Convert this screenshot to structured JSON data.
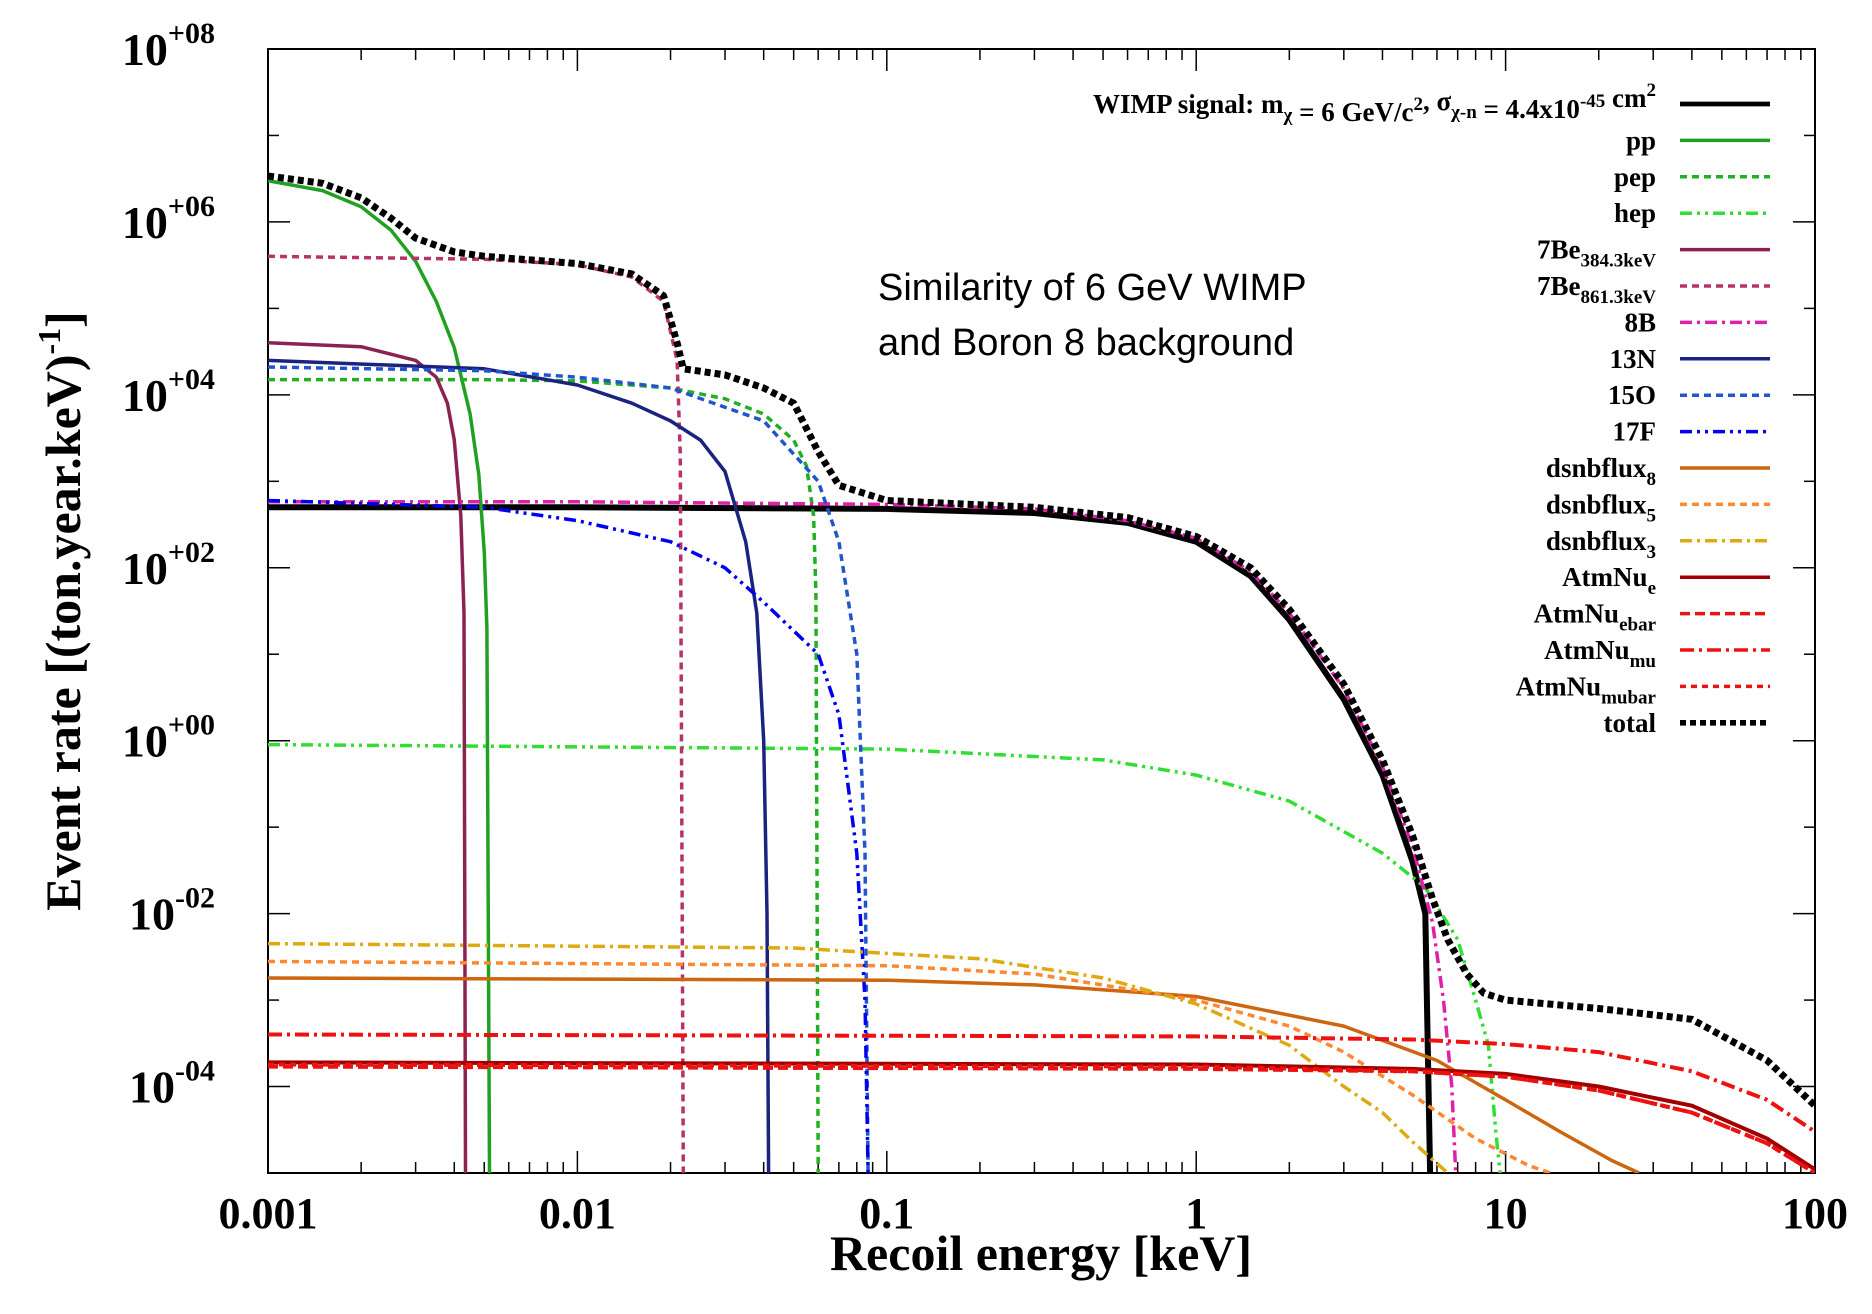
{
  "chart_data": {
    "type": "line",
    "xlabel": "Recoil energy [keV]",
    "ylabel_main": "Event rate [(ton.year.keV)",
    "ylabel_sup": "-1",
    "ylabel_close": "]",
    "x_scale": "log",
    "y_scale": "log",
    "xlim": [
      0.001,
      100
    ],
    "ylim": [
      1e-05,
      100000000.0
    ],
    "x_ticks": [
      {
        "value": 0.001,
        "label": "0.001"
      },
      {
        "value": 0.01,
        "label": "0.01"
      },
      {
        "value": 0.1,
        "label": "0.1"
      },
      {
        "value": 1,
        "label": "1"
      },
      {
        "value": 10,
        "label": "10"
      },
      {
        "value": 100,
        "label": "100"
      }
    ],
    "y_ticks": [
      {
        "value": 100000000.0,
        "base": "10",
        "exp": "+08"
      },
      {
        "value": 1000000.0,
        "base": "10",
        "exp": "+06"
      },
      {
        "value": 10000.0,
        "base": "10",
        "exp": "+04"
      },
      {
        "value": 100.0,
        "base": "10",
        "exp": "+02"
      },
      {
        "value": 1,
        "base": "10",
        "exp": "+00"
      },
      {
        "value": 0.01,
        "base": "10",
        "exp": "-02"
      },
      {
        "value": 0.0001,
        "base": "10",
        "exp": "-04"
      }
    ],
    "grid": false,
    "legend_position": "top-right",
    "annotation": [
      "Similarity of 6 GeV WIMP",
      "and Boron 8 background"
    ],
    "series": [
      {
        "name": "WIMP signal",
        "legend_text": "WIMP signal: m",
        "legend_sub1": "χ",
        "legend_text2": " = 6 GeV/c",
        "legend_sup1": "2",
        "legend_text3": ", σ",
        "legend_sub2": "χ-n",
        "legend_text4": " = 4.4x10",
        "legend_sup2": "-45",
        "legend_text5": " cm",
        "legend_sup3": "2",
        "color": "#000000",
        "dash": "solid",
        "width": 6,
        "points": [
          [
            0.001,
            500
          ],
          [
            0.01,
            500
          ],
          [
            0.1,
            480
          ],
          [
            0.3,
            430
          ],
          [
            0.6,
            330
          ],
          [
            1,
            200
          ],
          [
            1.5,
            80
          ],
          [
            2,
            25
          ],
          [
            3,
            3
          ],
          [
            4,
            0.4
          ],
          [
            5,
            0.04
          ],
          [
            5.5,
            0.01
          ],
          [
            5.7,
            1e-05
          ]
        ]
      },
      {
        "name": "pp",
        "color": "#22a022",
        "dash": "solid",
        "width": 3.5,
        "points": [
          [
            0.001,
            3000000.0
          ],
          [
            0.0015,
            2300000.0
          ],
          [
            0.002,
            1500000.0
          ],
          [
            0.0025,
            800000.0
          ],
          [
            0.003,
            350000.0
          ],
          [
            0.0035,
            120000.0
          ],
          [
            0.004,
            35000.0
          ],
          [
            0.0045,
            6000
          ],
          [
            0.0048,
            1200
          ],
          [
            0.005,
            150
          ],
          [
            0.0051,
            20
          ],
          [
            0.0052,
            1e-05
          ]
        ]
      },
      {
        "name": "pep",
        "color": "#22b022",
        "dash": "7,5",
        "width": 3.5,
        "points": [
          [
            0.001,
            15000
          ],
          [
            0.005,
            15000
          ],
          [
            0.01,
            14500
          ],
          [
            0.02,
            12000
          ],
          [
            0.03,
            9000
          ],
          [
            0.04,
            6000
          ],
          [
            0.05,
            3000
          ],
          [
            0.055,
            1500
          ],
          [
            0.058,
            400
          ],
          [
            0.059,
            50
          ],
          [
            0.06,
            1e-05
          ]
        ]
      },
      {
        "name": "hep",
        "color": "#33dd33",
        "dash": "12,5,3,5,3,5",
        "width": 3.5,
        "points": [
          [
            0.001,
            0.9
          ],
          [
            0.1,
            0.8
          ],
          [
            0.5,
            0.6
          ],
          [
            1,
            0.4
          ],
          [
            2,
            0.2
          ],
          [
            4,
            0.05
          ],
          [
            5.5,
            0.02
          ],
          [
            7,
            0.005
          ],
          [
            8,
            0.001
          ],
          [
            8.8,
            0.0003
          ],
          [
            9.3,
            3e-05
          ],
          [
            9.6,
            1e-05
          ]
        ]
      },
      {
        "name": "7Be 384.3keV",
        "legend_text": "7Be",
        "legend_sub1": "384.3keV",
        "color": "#8b2252",
        "dash": "solid",
        "width": 3.5,
        "points": [
          [
            0.001,
            40000
          ],
          [
            0.002,
            36000
          ],
          [
            0.003,
            25000
          ],
          [
            0.0035,
            16000
          ],
          [
            0.0038,
            8000
          ],
          [
            0.004,
            3000
          ],
          [
            0.0042,
            400
          ],
          [
            0.0043,
            30
          ],
          [
            0.00435,
            1e-05
          ]
        ]
      },
      {
        "name": "7Be 861.3keV",
        "legend_text": "7Be",
        "legend_sub1": "861.3keV",
        "color": "#b8336a",
        "dash": "7,5",
        "width": 3.5,
        "points": [
          [
            0.001,
            400000
          ],
          [
            0.005,
            370000
          ],
          [
            0.01,
            320000
          ],
          [
            0.015,
            230000
          ],
          [
            0.019,
            120000
          ],
          [
            0.021,
            25000
          ],
          [
            0.0215,
            2000
          ],
          [
            0.022,
            1e-05
          ]
        ]
      },
      {
        "name": "8B",
        "color": "#dd22aa",
        "dash": "12,5,3,5",
        "width": 3.5,
        "points": [
          [
            0.001,
            580
          ],
          [
            0.01,
            580
          ],
          [
            0.1,
            540
          ],
          [
            0.3,
            480
          ],
          [
            0.6,
            350
          ],
          [
            1,
            220
          ],
          [
            1.5,
            90
          ],
          [
            2,
            30
          ],
          [
            3,
            4
          ],
          [
            4,
            0.5
          ],
          [
            5,
            0.06
          ],
          [
            5.8,
            0.008
          ],
          [
            6.3,
            0.001
          ],
          [
            6.7,
            0.0001
          ],
          [
            6.9,
            1e-05
          ]
        ]
      },
      {
        "name": "13N",
        "color": "#1a237e",
        "dash": "solid",
        "width": 3.5,
        "points": [
          [
            0.001,
            25000
          ],
          [
            0.005,
            20000
          ],
          [
            0.01,
            13000
          ],
          [
            0.015,
            8000
          ],
          [
            0.02,
            5000
          ],
          [
            0.025,
            3000
          ],
          [
            0.03,
            1300
          ],
          [
            0.035,
            200
          ],
          [
            0.038,
            30
          ],
          [
            0.04,
            1
          ],
          [
            0.041,
            0.01
          ],
          [
            0.0415,
            1e-05
          ]
        ]
      },
      {
        "name": "15O",
        "color": "#2255cc",
        "dash": "7,5",
        "width": 3.5,
        "points": [
          [
            0.001,
            21000
          ],
          [
            0.005,
            19000
          ],
          [
            0.01,
            16000
          ],
          [
            0.02,
            12000
          ],
          [
            0.04,
            5000
          ],
          [
            0.06,
            1000
          ],
          [
            0.07,
            200
          ],
          [
            0.08,
            10
          ],
          [
            0.085,
            0.05
          ],
          [
            0.087,
            1e-05
          ]
        ]
      },
      {
        "name": "17F",
        "color": "#0000ee",
        "dash": "12,5,3,5,3,5",
        "width": 3.5,
        "points": [
          [
            0.001,
            600
          ],
          [
            0.005,
            500
          ],
          [
            0.01,
            350
          ],
          [
            0.02,
            200
          ],
          [
            0.03,
            100
          ],
          [
            0.04,
            40
          ],
          [
            0.06,
            10
          ],
          [
            0.07,
            2
          ],
          [
            0.08,
            0.05
          ],
          [
            0.085,
            0.001
          ],
          [
            0.087,
            1e-05
          ]
        ]
      },
      {
        "name": "dsnbflux 8",
        "legend_text": "dsnbflux",
        "legend_sub1": "8",
        "color": "#cc6611",
        "dash": "solid",
        "width": 3.5,
        "points": [
          [
            0.001,
            0.0018
          ],
          [
            0.1,
            0.0017
          ],
          [
            0.3,
            0.0015
          ],
          [
            1,
            0.0011
          ],
          [
            3,
            0.0005
          ],
          [
            6,
            0.0002
          ],
          [
            10,
            7e-05
          ],
          [
            15,
            3e-05
          ],
          [
            22,
            1.4e-05
          ],
          [
            27,
            1e-05
          ]
        ]
      },
      {
        "name": "dsnbflux 5",
        "legend_text": "dsnbflux",
        "legend_sub1": "5",
        "color": "#ff8833",
        "dash": "7,5",
        "width": 3.5,
        "points": [
          [
            0.001,
            0.0028
          ],
          [
            0.1,
            0.0025
          ],
          [
            0.3,
            0.002
          ],
          [
            1,
            0.001
          ],
          [
            2,
            0.0005
          ],
          [
            3,
            0.00025
          ],
          [
            5,
            8e-05
          ],
          [
            8,
            2.5e-05
          ],
          [
            12,
            1.2e-05
          ],
          [
            14,
            1e-05
          ]
        ]
      },
      {
        "name": "dsnbflux 3",
        "legend_text": "dsnbflux",
        "legend_sub1": "3",
        "color": "#ddaa11",
        "dash": "12,5,3,5",
        "width": 3.5,
        "points": [
          [
            0.001,
            0.0045
          ],
          [
            0.05,
            0.004
          ],
          [
            0.2,
            0.003
          ],
          [
            0.5,
            0.0018
          ],
          [
            1,
            0.0009
          ],
          [
            2,
            0.0003
          ],
          [
            3,
            0.0001
          ],
          [
            4,
            5e-05
          ],
          [
            5,
            2.3e-05
          ],
          [
            6.5,
            1e-05
          ]
        ]
      },
      {
        "name": "AtmNu e",
        "legend_text": "AtmNu",
        "legend_sub1": "e",
        "color": "#a00000",
        "dash": "solid",
        "width": 4,
        "points": [
          [
            0.001,
            0.00019
          ],
          [
            1,
            0.00018
          ],
          [
            5,
            0.00016
          ],
          [
            10,
            0.00014
          ],
          [
            20,
            0.0001
          ],
          [
            40,
            6e-05
          ],
          [
            70,
            2.5e-05
          ],
          [
            100,
            1.1e-05
          ]
        ]
      },
      {
        "name": "AtmNu ebar",
        "legend_text": "AtmNu",
        "legend_sub1": "ebar",
        "color": "#ee1111",
        "dash": "10,5",
        "width": 4,
        "points": [
          [
            0.001,
            0.00017
          ],
          [
            1,
            0.00016
          ],
          [
            5,
            0.00015
          ],
          [
            10,
            0.00013
          ],
          [
            20,
            9e-05
          ],
          [
            40,
            5e-05
          ],
          [
            70,
            2.2e-05
          ],
          [
            100,
            1e-05
          ]
        ]
      },
      {
        "name": "AtmNu mu",
        "legend_text": "AtmNu",
        "legend_sub1": "mu",
        "color": "#ee1111",
        "dash": "14,5,3,5",
        "width": 4,
        "points": [
          [
            0.001,
            0.0004
          ],
          [
            1,
            0.00038
          ],
          [
            5,
            0.00035
          ],
          [
            10,
            0.00031
          ],
          [
            20,
            0.00025
          ],
          [
            40,
            0.00015
          ],
          [
            70,
            7e-05
          ],
          [
            100,
            3e-05
          ]
        ]
      },
      {
        "name": "AtmNu mubar",
        "legend_text": "AtmNu",
        "legend_sub1": "mubar",
        "color": "#ee1111",
        "dash": "6,5",
        "width": 4,
        "points": [
          [
            0.001,
            0.00018
          ],
          [
            1,
            0.00017
          ],
          [
            5,
            0.00015
          ],
          [
            10,
            0.00013
          ],
          [
            20,
            9e-05
          ],
          [
            40,
            5e-05
          ],
          [
            70,
            2.2e-05
          ],
          [
            100,
            1e-05
          ]
        ]
      },
      {
        "name": "total",
        "color": "#000000",
        "dash": "6,4",
        "width": 7,
        "points": [
          [
            0.001,
            3400000.0
          ],
          [
            0.0015,
            2800000.0
          ],
          [
            0.002,
            1900000.0
          ],
          [
            0.0025,
            1100000.0
          ],
          [
            0.003,
            650000.0
          ],
          [
            0.004,
            450000.0
          ],
          [
            0.005,
            400000.0
          ],
          [
            0.01,
            330000.0
          ],
          [
            0.015,
            250000.0
          ],
          [
            0.019,
            140000.0
          ],
          [
            0.021,
            40000.0
          ],
          [
            0.022,
            20000.0
          ],
          [
            0.03,
            17000.0
          ],
          [
            0.04,
            12000.0
          ],
          [
            0.05,
            8000
          ],
          [
            0.06,
            2200
          ],
          [
            0.07,
            900
          ],
          [
            0.1,
            600
          ],
          [
            0.3,
            500
          ],
          [
            0.6,
            380
          ],
          [
            1,
            230
          ],
          [
            1.5,
            100
          ],
          [
            2,
            33
          ],
          [
            3,
            4.5
          ],
          [
            4,
            0.6
          ],
          [
            5,
            0.08
          ],
          [
            5.8,
            0.015
          ],
          [
            6.5,
            0.005
          ],
          [
            7.5,
            0.002
          ],
          [
            8.5,
            0.0012
          ],
          [
            10,
            0.001
          ],
          [
            20,
            0.0008
          ],
          [
            40,
            0.0006
          ],
          [
            70,
            0.0002
          ],
          [
            100,
            6e-05
          ]
        ]
      }
    ]
  }
}
